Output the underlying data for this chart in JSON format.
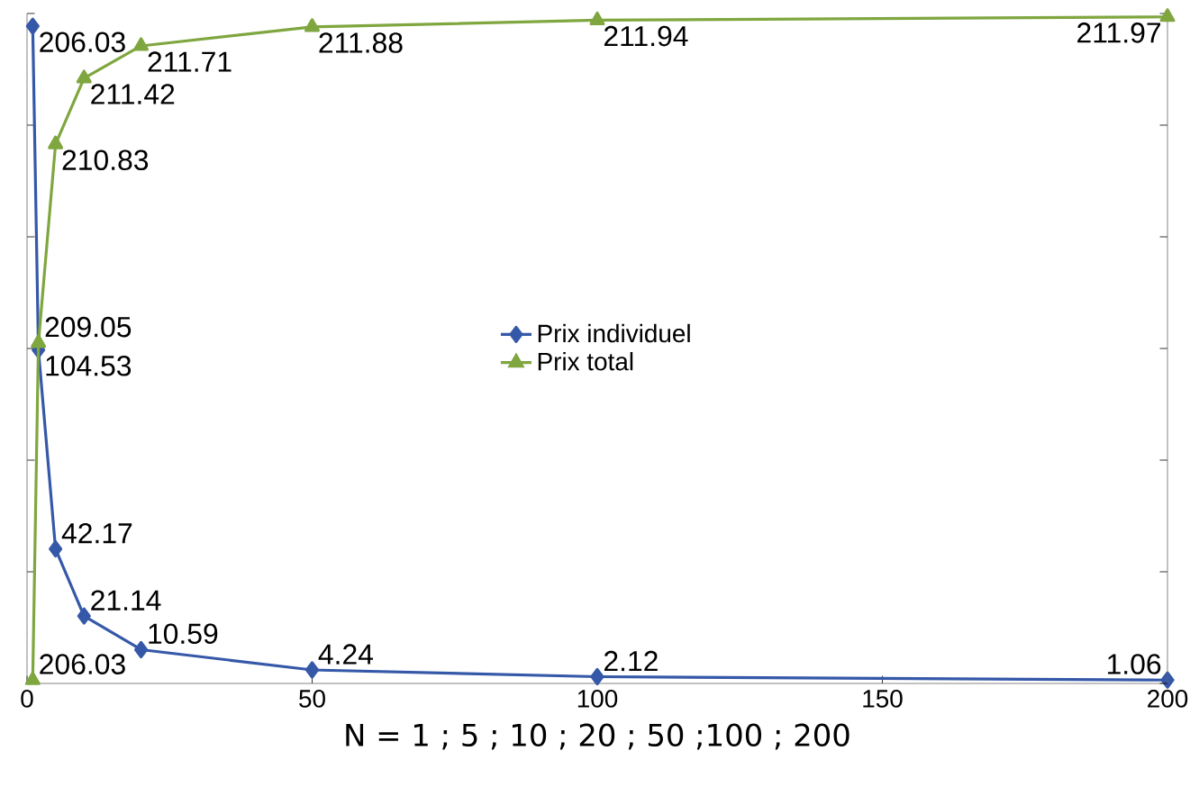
{
  "chart_data": {
    "type": "line",
    "xlabel": "N = 1 ; 5 ; 10 ; 20 ; 50 ;100 ; 200",
    "x": [
      1,
      2,
      5,
      10,
      20,
      50,
      100,
      200
    ],
    "series": [
      {
        "name": "Prix individuel",
        "color": "#3558a8",
        "marker": "diamond",
        "values": [
          206.03,
          104.53,
          42.17,
          21.14,
          10.59,
          4.24,
          2.12,
          1.06
        ]
      },
      {
        "name": "Prix total",
        "color": "#7fa63f",
        "marker": "triangle",
        "axis": "y2",
        "values": [
          206.03,
          209.05,
          210.83,
          211.42,
          211.71,
          211.88,
          211.94,
          211.97
        ]
      }
    ],
    "xlim": [
      0,
      200
    ],
    "xticks": [
      0,
      50,
      100,
      150,
      200
    ],
    "ylim": [
      0,
      210
    ],
    "yticks": [
      {
        "value": 0,
        "label": null
      },
      {
        "value": 35,
        "label": null
      },
      {
        "value": 70,
        "label": null
      },
      {
        "value": 105,
        "label": null
      },
      {
        "value": 140,
        "label": null
      },
      {
        "value": 175,
        "label": null
      },
      {
        "value": 210,
        "label": null
      }
    ],
    "y2lim": [
      206,
      212
    ],
    "y2ticks": [
      {
        "value": 206,
        "label": null
      },
      {
        "value": 207,
        "label": null
      },
      {
        "value": 208,
        "label": null
      },
      {
        "value": 209,
        "label": null
      },
      {
        "value": 210,
        "label": null
      },
      {
        "value": 211,
        "label": null
      },
      {
        "value": 212,
        "label": null
      }
    ],
    "data_labels": true,
    "legend": "center",
    "grid": false,
    "tick_labels": "x"
  }
}
